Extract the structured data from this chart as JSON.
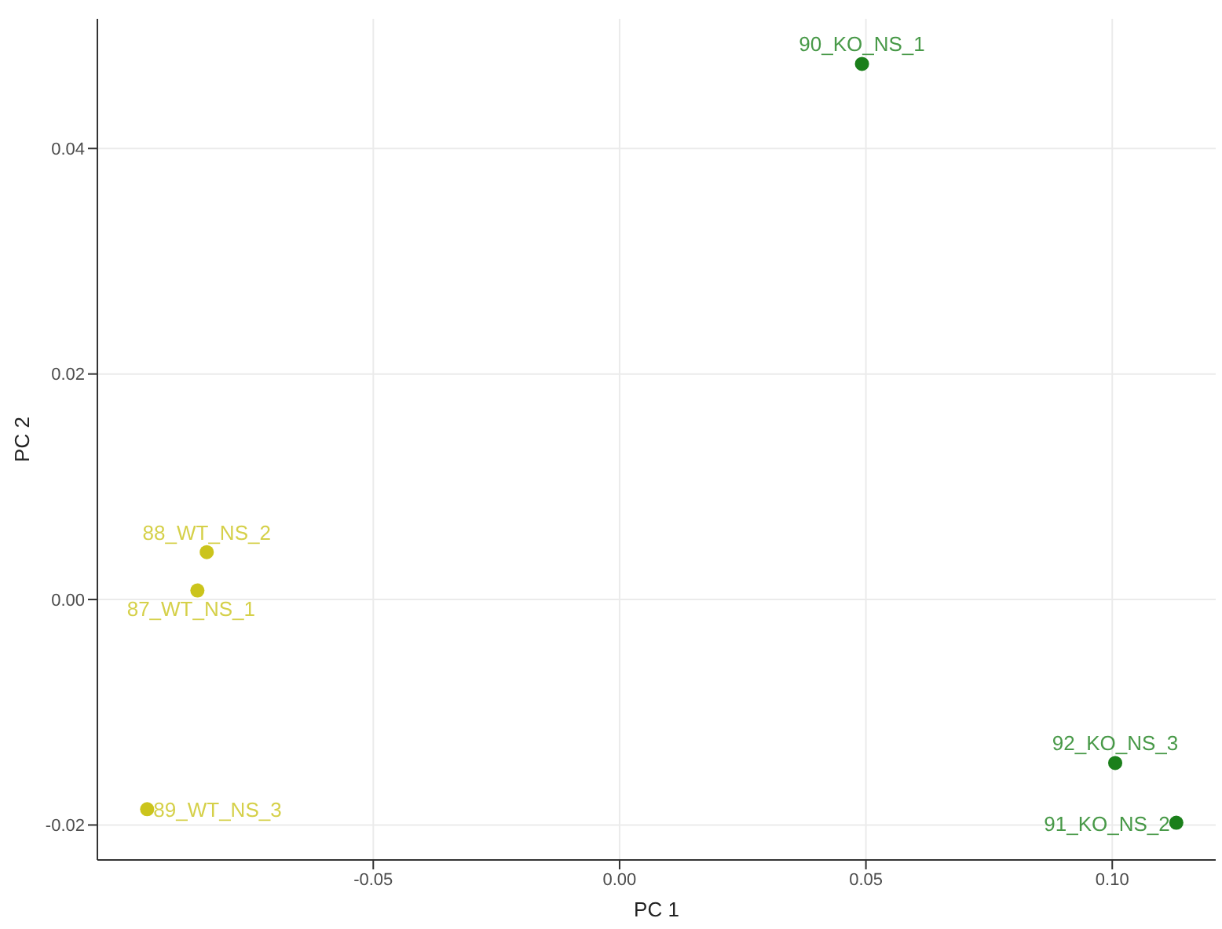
{
  "chart_data": {
    "type": "scatter",
    "xlabel": "PC 1",
    "ylabel": "PC 2",
    "xlim": [
      -0.106,
      0.121
    ],
    "ylim": [
      -0.0231,
      0.0515
    ],
    "xticks": [
      {
        "value": -0.05,
        "label": "-0.05"
      },
      {
        "value": 0,
        "label": "0.00"
      },
      {
        "value": 0.05,
        "label": "0.05"
      },
      {
        "value": 0.1,
        "label": "0.10"
      }
    ],
    "yticks": [
      {
        "value": -0.02,
        "label": "-0.02"
      },
      {
        "value": 0,
        "label": "0.00"
      },
      {
        "value": 0.02,
        "label": "0.02"
      },
      {
        "value": 0.04,
        "label": "0.04"
      }
    ],
    "grid": true,
    "marker": "circle",
    "legend": false,
    "series": [
      {
        "color": "#cbc41c",
        "x": [
          -0.0857,
          -0.0838,
          -0.0959
        ],
        "values": [
          0.0008,
          0.0042,
          -0.0186
        ],
        "value_labels": [
          "87_WT_NS_1",
          "88_WT_NS_2",
          "89_WT_NS_3"
        ]
      },
      {
        "color": "#1a7f1a",
        "x": [
          0.0492,
          0.113,
          0.1006
        ],
        "values": [
          0.0475,
          -0.0198,
          -0.0145
        ],
        "value_labels": [
          "90_KO_NS_1",
          "91_KO_NS_2",
          "92_KO_NS_3"
        ]
      }
    ]
  }
}
